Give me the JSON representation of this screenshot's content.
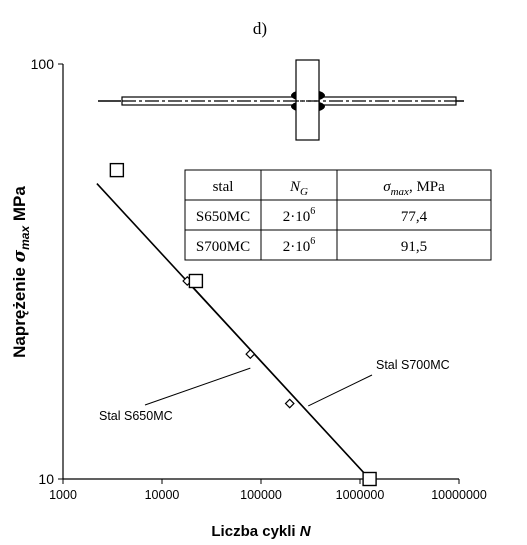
{
  "chart_data": {
    "type": "scatter",
    "panel_label": "d)",
    "xlabel": "Liczba cykli ",
    "xlabel_var": "N",
    "ylabel": "Naprężenie ",
    "ylabel_var": "σ",
    "ylabel_sub": "max",
    "ylabel_unit": " MPa",
    "x_scale": "log",
    "y_scale": "log",
    "xlim": [
      1000,
      10000000
    ],
    "ylim": [
      10,
      100
    ],
    "x_ticks": [
      1000,
      10000,
      100000,
      1000000,
      10000000
    ],
    "x_tick_labels": [
      "1000",
      "10000",
      "100000",
      "1000000",
      "10000000"
    ],
    "y_ticks": [
      10,
      100
    ],
    "y_tick_labels": [
      "10",
      "100"
    ],
    "grid": false,
    "series": [
      {
        "name": "Stal S650MC",
        "marker": "diamond",
        "points": [
          [
            18000,
            30
          ],
          [
            78000,
            20
          ],
          [
            195000,
            15.2
          ]
        ],
        "fit_line": [
          [
            18000,
            30
          ],
          [
            1250000,
            10
          ]
        ]
      },
      {
        "name": "Stal S700MC",
        "marker": "square",
        "points": [
          [
            3500,
            55.5
          ],
          [
            22000,
            30
          ],
          [
            1250000,
            10
          ]
        ],
        "fit_line": [
          [
            2200,
            51.5
          ],
          [
            1250000,
            10
          ]
        ]
      }
    ],
    "annotations": [
      {
        "text": "Stal S700MC",
        "points_to": [
          300000,
          15
        ]
      },
      {
        "text": "Stal S650MC",
        "points_to": [
          78000,
          18.5
        ]
      }
    ],
    "table": {
      "headers": [
        "stal",
        "N",
        "σ"
      ],
      "header_subs": [
        "",
        "G",
        "max"
      ],
      "header_suffix": [
        "",
        "",
        ", MPa"
      ],
      "rows": [
        {
          "stal": "S650MC",
          "ng_base": "2·10",
          "ng_exp": "6",
          "smax": "77,4"
        },
        {
          "stal": "S700MC",
          "ng_base": "2·10",
          "ng_exp": "6",
          "smax": "91,5"
        }
      ]
    }
  }
}
